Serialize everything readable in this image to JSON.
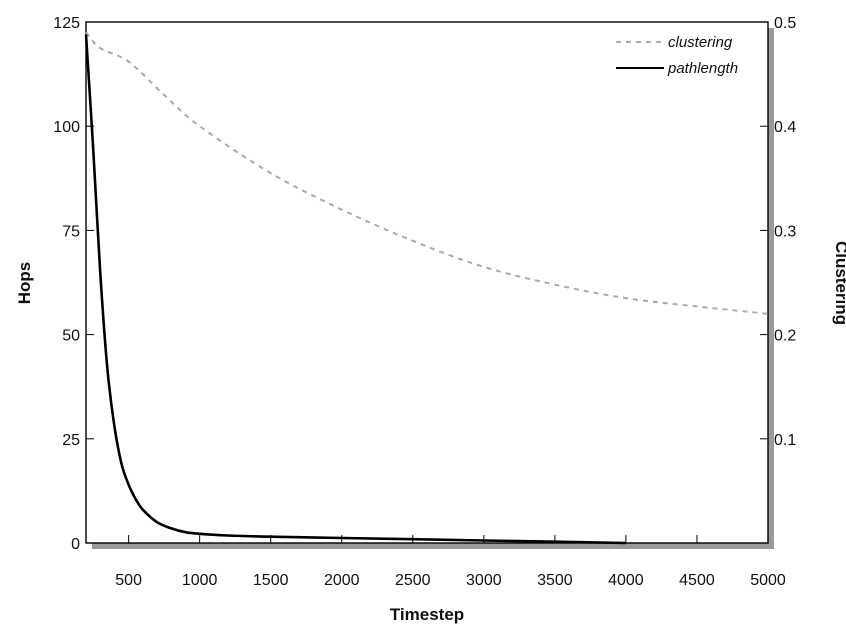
{
  "chart_data": {
    "type": "line",
    "xlabel": "Timestep",
    "ylabel_left": "Hops",
    "ylabel_right": "Clustering",
    "xlim": [
      200,
      5000
    ],
    "ylim_left": [
      0,
      125
    ],
    "ylim_right": [
      0,
      0.5
    ],
    "x_ticks": [
      500,
      1000,
      1500,
      2000,
      2500,
      3000,
      3500,
      4000,
      4500,
      5000
    ],
    "x_tick_labels": [
      "500",
      "1000",
      "1500",
      "2000",
      "2500",
      "3000",
      "3500",
      "4000",
      "4500",
      "5000"
    ],
    "y_left_ticks": [
      0,
      25,
      50,
      75,
      100,
      125
    ],
    "y_left_tick_labels": [
      "0",
      "25",
      "50",
      "75",
      "100",
      "125"
    ],
    "y_right_ticks": [
      0.1,
      0.2,
      0.3,
      0.4,
      0.5
    ],
    "y_right_tick_labels": [
      "0.1",
      "0.2",
      "0.3",
      "0.4",
      "0.5"
    ],
    "grid": false,
    "legend_position": "top-right",
    "series": [
      {
        "name": "clustering",
        "axis": "right",
        "style": "dashed",
        "color": "#aaaaaa",
        "x": [
          200,
          300,
          500,
          750,
          1000,
          1500,
          2000,
          2500,
          3000,
          3500,
          4000,
          4500,
          5000
        ],
        "y": [
          0.49,
          0.475,
          0.462,
          0.43,
          0.4,
          0.355,
          0.32,
          0.29,
          0.265,
          0.248,
          0.235,
          0.227,
          0.22
        ]
      },
      {
        "name": "pathlength",
        "axis": "left",
        "style": "solid",
        "color": "#000000",
        "x": [
          200,
          250,
          300,
          350,
          400,
          450,
          500,
          550,
          600,
          700,
          800,
          900,
          1000,
          1200,
          1500,
          2000,
          2500,
          3000,
          3500,
          4000
        ],
        "y": [
          122,
          95,
          65,
          42,
          28,
          19,
          14,
          10.5,
          8,
          5,
          3.5,
          2.6,
          2.2,
          1.8,
          1.5,
          1.2,
          0.9,
          0.6,
          0.3,
          0
        ]
      }
    ]
  }
}
